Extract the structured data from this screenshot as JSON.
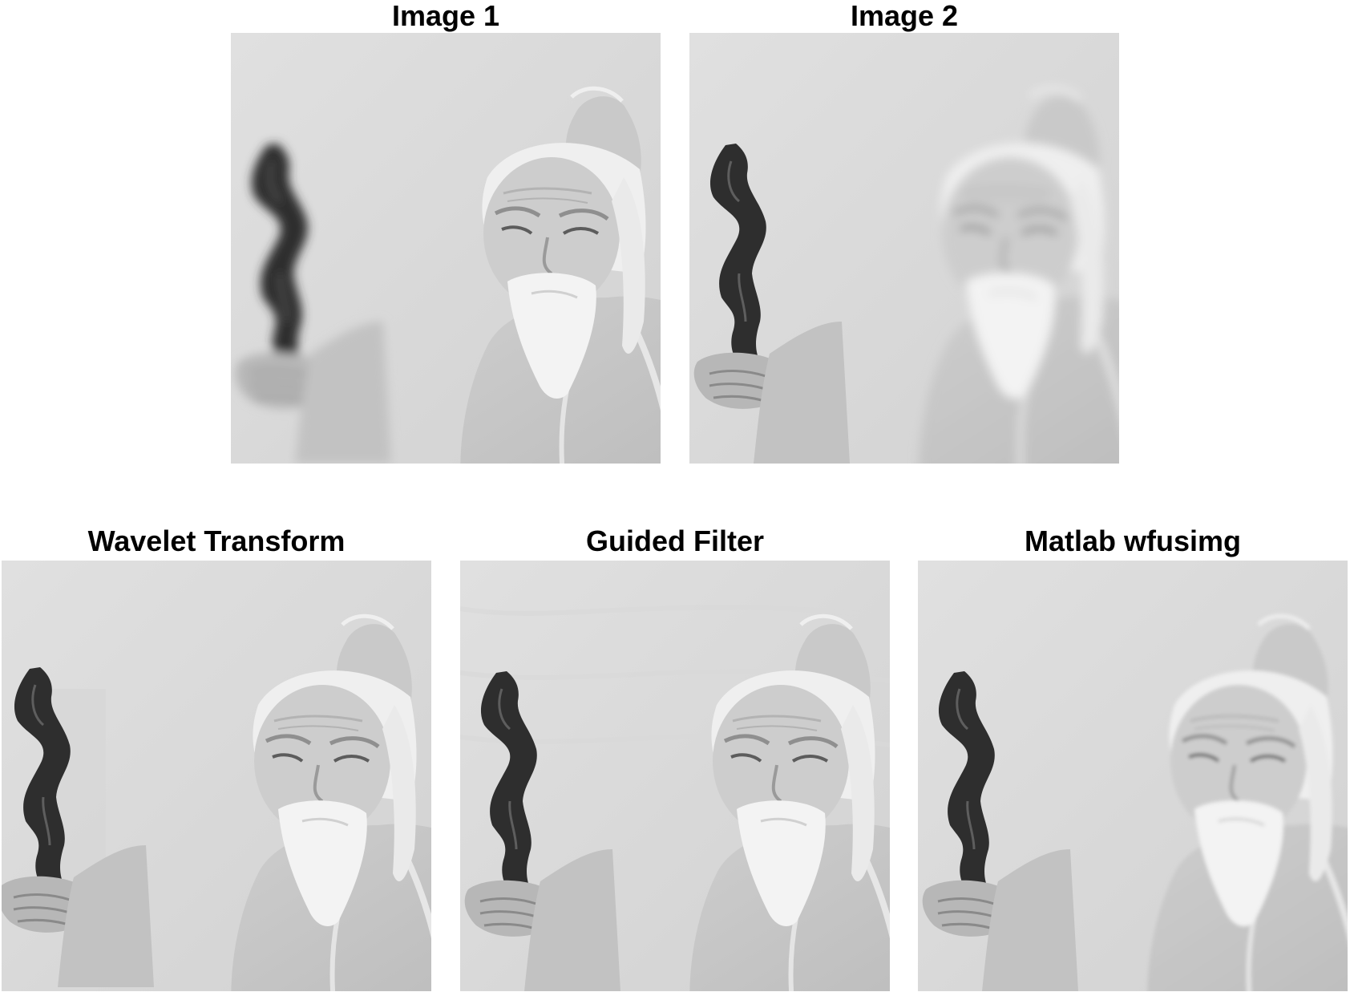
{
  "figure": {
    "panels": [
      {
        "title": "Image 1",
        "focus": "figurine face sharp, staff blurred"
      },
      {
        "title": "Image 2",
        "focus": "staff sharp, figurine face blurred"
      },
      {
        "title": "Wavelet Transform",
        "focus": "fused"
      },
      {
        "title": "Guided Filter",
        "focus": "fused"
      },
      {
        "title": "Matlab wfusimg",
        "focus": "fused"
      }
    ]
  },
  "colors": {
    "background": "#ffffff",
    "photo_background": "#d9d9d9",
    "robe": "#c4c4c4",
    "face": "#cfcfcf",
    "beard_hair": "#f2f2f2",
    "staff": "#2e2e2e",
    "title_text": "#000000"
  }
}
